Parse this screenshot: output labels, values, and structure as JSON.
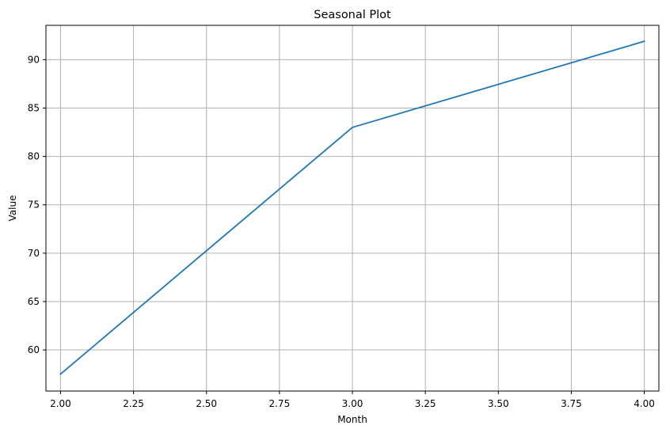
{
  "chart_data": {
    "type": "line",
    "title": "Seasonal Plot",
    "xlabel": "Month",
    "ylabel": "Value",
    "xlim": [
      1.95,
      4.05
    ],
    "ylim": [
      55.75,
      93.55
    ],
    "x_ticks": [
      2.0,
      2.25,
      2.5,
      2.75,
      3.0,
      3.25,
      3.5,
      3.75,
      4.0
    ],
    "x_tick_labels": [
      "2.00",
      "2.25",
      "2.50",
      "2.75",
      "3.00",
      "3.25",
      "3.50",
      "3.75",
      "4.00"
    ],
    "y_ticks": [
      60,
      65,
      70,
      75,
      80,
      85,
      90
    ],
    "y_tick_labels": [
      "60",
      "65",
      "70",
      "75",
      "80",
      "85",
      "90"
    ],
    "grid": true,
    "series": [
      {
        "x": [
          2,
          3,
          4
        ],
        "values": [
          57.5,
          83.0,
          91.9
        ],
        "color": "#1f77b4"
      }
    ]
  }
}
